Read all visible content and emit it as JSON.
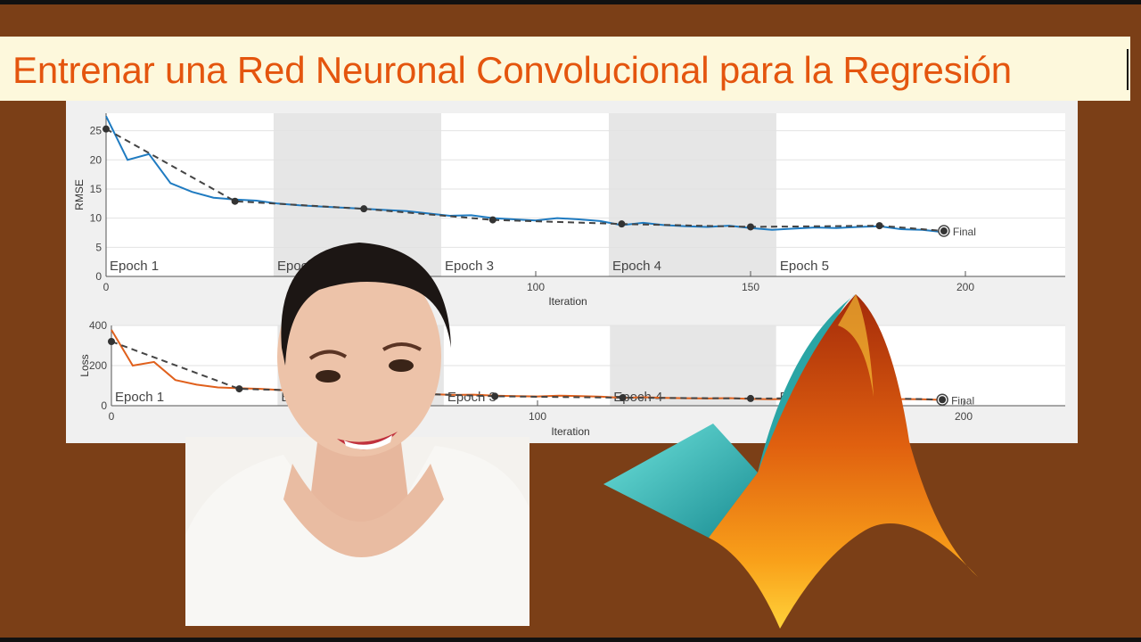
{
  "banner": {
    "title": "Entrenar una Red Neuronal Convolucional para la Regresión"
  },
  "colors": {
    "background": "#7b3f17",
    "title": "#e4550e",
    "banner": "#fdf8dc",
    "rmse_line": "#1f7bc1",
    "loss_line": "#e0601c",
    "validation": "#333333"
  },
  "chart_data": [
    {
      "type": "line",
      "ylabel": "RMSE",
      "xlabel": "Iteration",
      "xlim": [
        0,
        223
      ],
      "ylim": [
        0,
        28
      ],
      "xticks": [
        0,
        100,
        150,
        200
      ],
      "yticks": [
        0,
        5,
        10,
        15,
        20,
        25
      ],
      "grid": true,
      "epochs": [
        "Epoch 1",
        "Epoch 2",
        "Epoch 3",
        "Epoch 4",
        "Epoch 5"
      ],
      "iterations_per_epoch": 39,
      "final_label": "Final",
      "training": {
        "x": [
          0,
          5,
          10,
          15,
          20,
          25,
          30,
          35,
          40,
          45,
          50,
          55,
          60,
          65,
          70,
          75,
          80,
          85,
          90,
          95,
          100,
          105,
          110,
          115,
          120,
          125,
          130,
          135,
          140,
          145,
          150,
          155,
          160,
          165,
          170,
          175,
          180,
          185,
          190,
          195
        ],
        "y": [
          27.5,
          20,
          21,
          16,
          14.5,
          13.5,
          13.2,
          13,
          12.5,
          12.2,
          12,
          11.8,
          11.6,
          11.4,
          11.2,
          10.8,
          10.4,
          10.5,
          10,
          9.8,
          9.6,
          10,
          9.8,
          9.5,
          8.8,
          9.2,
          8.8,
          8.6,
          8.5,
          8.7,
          8.3,
          8.0,
          8.2,
          8.4,
          8.3,
          8.5,
          8.6,
          8.1,
          8.0,
          7.6
        ]
      },
      "validation": {
        "x": [
          0,
          30,
          60,
          90,
          120,
          150,
          180,
          195
        ],
        "y": [
          25.3,
          12.9,
          11.6,
          9.7,
          9.0,
          8.5,
          8.7,
          7.8
        ]
      }
    },
    {
      "type": "line",
      "ylabel": "Loss",
      "xlabel": "Iteration",
      "xlim": [
        0,
        225
      ],
      "ylim": [
        0,
        400
      ],
      "xticks": [
        0,
        100,
        200
      ],
      "yticks": [
        0,
        200,
        400
      ],
      "grid": true,
      "epochs": [
        "Epoch 1",
        "Epoch 2",
        "Epoch 3",
        "Epoch 4",
        "Epoch 5"
      ],
      "iterations_per_epoch": 39,
      "final_label": "Final",
      "training": {
        "x": [
          0,
          5,
          10,
          15,
          20,
          25,
          30,
          35,
          40,
          45,
          50,
          55,
          60,
          65,
          70,
          75,
          80,
          85,
          90,
          95,
          100,
          105,
          110,
          115,
          120,
          125,
          130,
          135,
          140,
          145,
          150,
          155,
          160,
          165,
          170,
          175,
          180,
          185,
          190,
          195
        ],
        "y": [
          378,
          200,
          218,
          128,
          105,
          91,
          87,
          84,
          78,
          74,
          72,
          70,
          67,
          65,
          63,
          58,
          54,
          55,
          50,
          48,
          46,
          50,
          48,
          45,
          39,
          42,
          39,
          37,
          36,
          38,
          34,
          32,
          34,
          35,
          34,
          36,
          37,
          33,
          32,
          29
        ]
      },
      "validation": {
        "x": [
          0,
          30,
          60,
          90,
          120,
          150,
          180,
          195
        ],
        "y": [
          320,
          84,
          67,
          47,
          40,
          36,
          38,
          30
        ]
      }
    }
  ]
}
